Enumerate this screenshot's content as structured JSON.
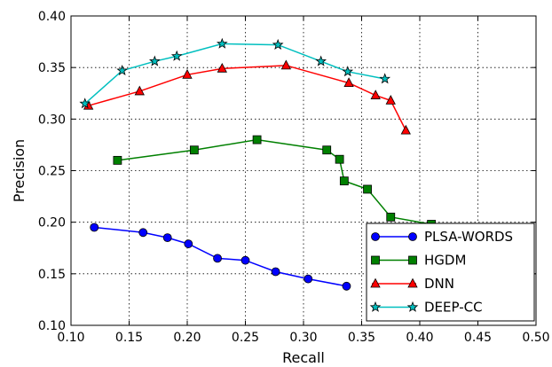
{
  "chart_data": {
    "type": "line",
    "title": "",
    "xlabel": "Recall",
    "ylabel": "Precision",
    "xlim": [
      0.1,
      0.5
    ],
    "ylim": [
      0.1,
      0.4
    ],
    "x_ticks": [
      "0.10",
      "0.15",
      "0.20",
      "0.25",
      "0.30",
      "0.35",
      "0.40",
      "0.45",
      "0.50"
    ],
    "y_ticks": [
      "0.10",
      "0.15",
      "0.20",
      "0.25",
      "0.30",
      "0.35",
      "0.40"
    ],
    "grid": true,
    "legend_position": "lower-right",
    "series": [
      {
        "name": "PLSA-WORDS",
        "color": "#0000ff",
        "marker": "circle",
        "x": [
          0.12,
          0.162,
          0.183,
          0.201,
          0.226,
          0.25,
          0.276,
          0.304,
          0.337
        ],
        "y": [
          0.195,
          0.19,
          0.185,
          0.179,
          0.165,
          0.163,
          0.152,
          0.145,
          0.138
        ]
      },
      {
        "name": "HGDM",
        "color": "#008000",
        "marker": "square",
        "x": [
          0.14,
          0.206,
          0.26,
          0.32,
          0.331,
          0.335,
          0.355,
          0.375,
          0.41
        ],
        "y": [
          0.26,
          0.27,
          0.28,
          0.27,
          0.261,
          0.24,
          0.232,
          0.205,
          0.198
        ]
      },
      {
        "name": "DNN",
        "color": "#ff0000",
        "marker": "triangle",
        "x": [
          0.115,
          0.159,
          0.2,
          0.23,
          0.285,
          0.339,
          0.362,
          0.375,
          0.388
        ],
        "y": [
          0.313,
          0.327,
          0.343,
          0.349,
          0.352,
          0.335,
          0.323,
          0.318,
          0.289
        ]
      },
      {
        "name": "DEEP-CC",
        "color": "#00bfbf",
        "marker": "star",
        "x": [
          0.112,
          0.144,
          0.172,
          0.191,
          0.23,
          0.278,
          0.315,
          0.338,
          0.37
        ],
        "y": [
          0.315,
          0.347,
          0.356,
          0.361,
          0.373,
          0.372,
          0.356,
          0.346,
          0.339
        ]
      }
    ]
  }
}
